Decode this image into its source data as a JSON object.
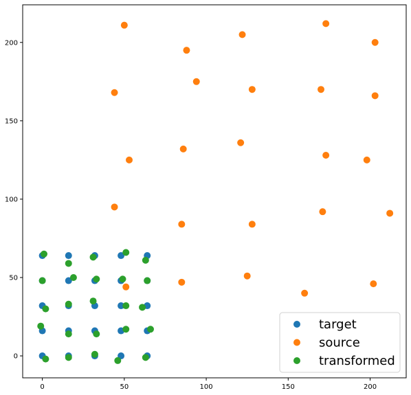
{
  "chart_data": {
    "type": "scatter",
    "xlim": [
      -12,
      222
    ],
    "ylim": [
      -14,
      224
    ],
    "xticks": [
      0,
      50,
      100,
      150,
      200
    ],
    "yticks": [
      0,
      50,
      100,
      150,
      200
    ],
    "grid": false,
    "legend_position": "lower-right",
    "series": [
      {
        "name": "target",
        "color": "#1f77b4",
        "points": [
          [
            0,
            0
          ],
          [
            16,
            0
          ],
          [
            32,
            0
          ],
          [
            48,
            0
          ],
          [
            64,
            0
          ],
          [
            0,
            16
          ],
          [
            16,
            16
          ],
          [
            32,
            16
          ],
          [
            48,
            16
          ],
          [
            64,
            16
          ],
          [
            0,
            32
          ],
          [
            16,
            32
          ],
          [
            32,
            32
          ],
          [
            48,
            32
          ],
          [
            64,
            32
          ],
          [
            0,
            48
          ],
          [
            16,
            48
          ],
          [
            32,
            48
          ],
          [
            48,
            48
          ],
          [
            64,
            48
          ],
          [
            0,
            64
          ],
          [
            16,
            64
          ],
          [
            32,
            64
          ],
          [
            48,
            64
          ],
          [
            64,
            64
          ]
        ]
      },
      {
        "name": "source",
        "color": "#ff7f0e",
        "points": [
          [
            51,
            44
          ],
          [
            85,
            47
          ],
          [
            125,
            51
          ],
          [
            160,
            40
          ],
          [
            202,
            46
          ],
          [
            44,
            95
          ],
          [
            85,
            84
          ],
          [
            128,
            84
          ],
          [
            171,
            92
          ],
          [
            212,
            91
          ],
          [
            53,
            125
          ],
          [
            86,
            132
          ],
          [
            121,
            136
          ],
          [
            173,
            128
          ],
          [
            198,
            125
          ],
          [
            44,
            168
          ],
          [
            94,
            175
          ],
          [
            128,
            170
          ],
          [
            170,
            170
          ],
          [
            203,
            166
          ],
          [
            50,
            211
          ],
          [
            88,
            195
          ],
          [
            122,
            205
          ],
          [
            173,
            212
          ],
          [
            203,
            200
          ]
        ]
      },
      {
        "name": "transformed",
        "color": "#2ca02c",
        "points": [
          [
            2,
            -2
          ],
          [
            16,
            -1
          ],
          [
            32,
            1
          ],
          [
            46,
            -3
          ],
          [
            63,
            -1
          ],
          [
            -1,
            19
          ],
          [
            16,
            14
          ],
          [
            33,
            14
          ],
          [
            51,
            17
          ],
          [
            66,
            17
          ],
          [
            2,
            30
          ],
          [
            16,
            33
          ],
          [
            31,
            35
          ],
          [
            51,
            32
          ],
          [
            61,
            31
          ],
          [
            0,
            48
          ],
          [
            19,
            50
          ],
          [
            33,
            49
          ],
          [
            49,
            49
          ],
          [
            64,
            48
          ],
          [
            1,
            65
          ],
          [
            16,
            59
          ],
          [
            31,
            63
          ],
          [
            51,
            66
          ],
          [
            63,
            61
          ]
        ]
      }
    ]
  }
}
